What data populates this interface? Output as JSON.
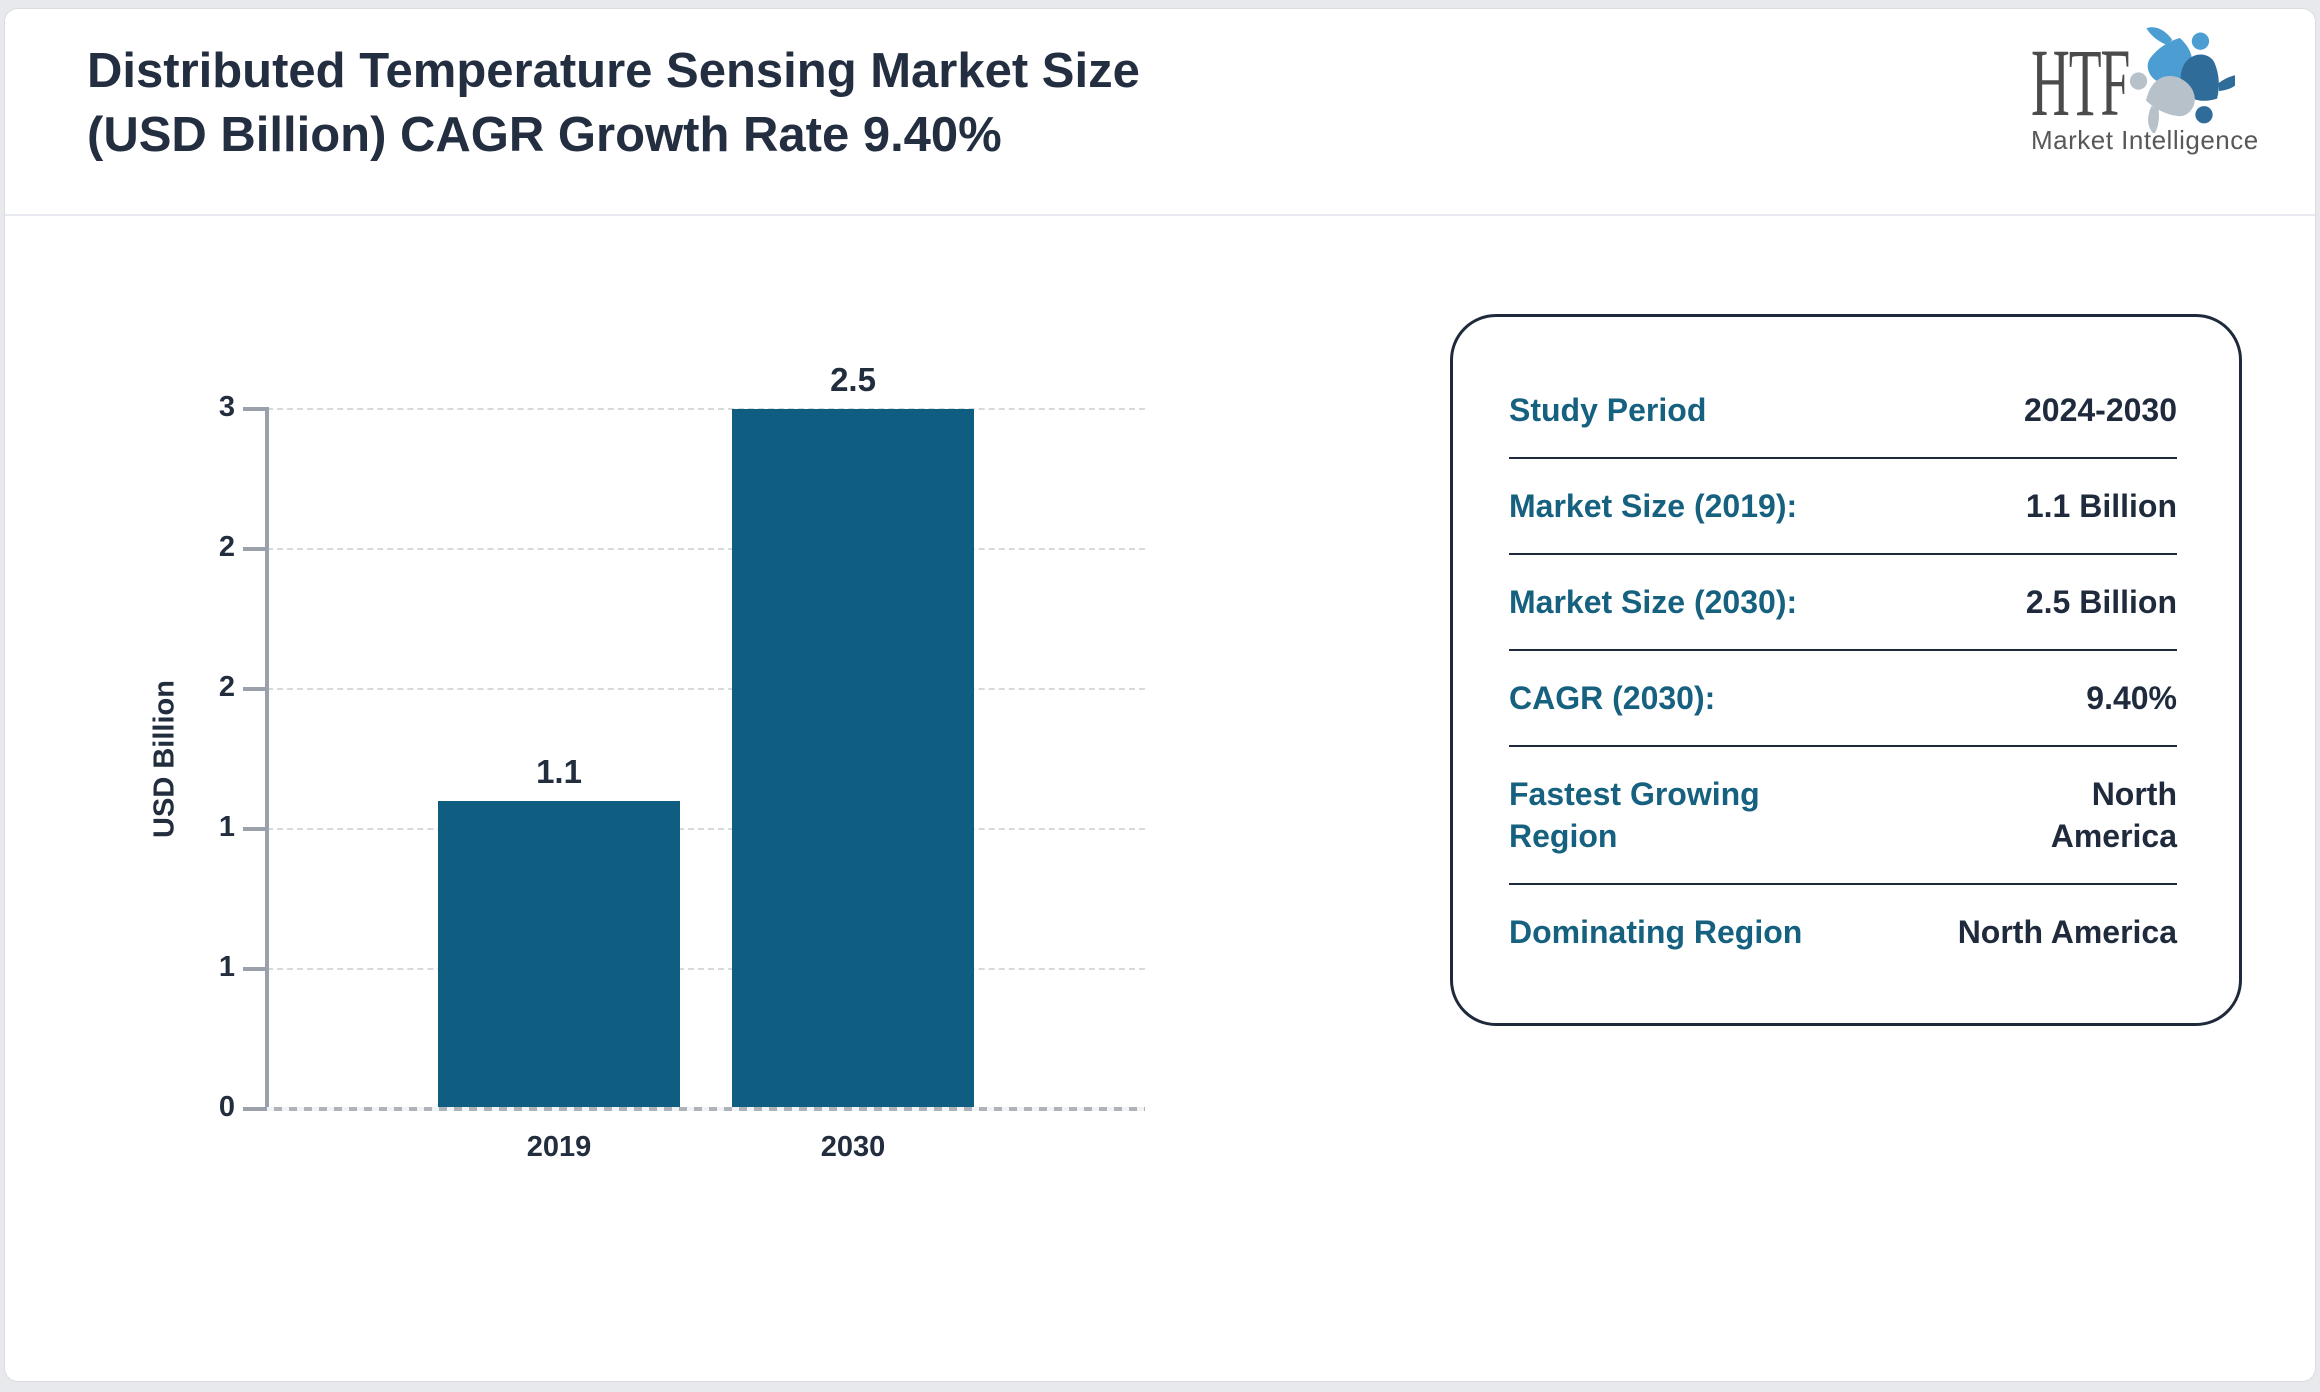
{
  "header": {
    "title_lines": [
      "Distributed Temperature Sensing Market Size",
      "(USD Billion) CAGR Growth Rate 9.40%"
    ],
    "logo": {
      "text": "HTF",
      "subtext": "Market Intelligence",
      "emblem_icon": "three-figures-swirl",
      "emblem_colors": [
        "#4c9ed2",
        "#2f6c99",
        "#b7c1ca"
      ]
    }
  },
  "chart_data": {
    "type": "bar",
    "title": "Distributed Temperature Sensing Market Size (USD Billion) CAGR Growth Rate 9.40%",
    "categories": [
      "2019",
      "2030"
    ],
    "values": [
      1.1,
      2.5
    ],
    "bar_value_labels": [
      "1.1",
      "2.5"
    ],
    "xlabel": "",
    "ylabel": "USD Billion",
    "ylim": [
      0,
      2.5
    ],
    "yticks": [
      0,
      0.5,
      1,
      1.5,
      2,
      2.5
    ],
    "ytick_display_labels": [
      "0",
      "1",
      "1",
      "2",
      "2",
      "3"
    ],
    "grid": "horizontal-dashed",
    "legend": "none",
    "bar_color": "#0f5d80"
  },
  "info_panel": {
    "rows": [
      {
        "label": "Study Period",
        "value": "2024-2030"
      },
      {
        "label": "Market Size (2019):",
        "value": "1.1 Billion"
      },
      {
        "label": "Market Size (2030):",
        "value": "2.5 Billion"
      },
      {
        "label": "CAGR (2030):",
        "value": "9.40%"
      },
      {
        "label": "Fastest Growing Region",
        "value": "North America"
      },
      {
        "label": "Dominating Region",
        "value": "North America"
      }
    ]
  },
  "colors": {
    "accent_teal": "#15617f",
    "navy": "#1f2b3d",
    "bar": "#0f5d80",
    "panel_border": "#1e2a3c",
    "axis_gray": "#9aa1ab",
    "grid_gray": "#d7dadd"
  }
}
